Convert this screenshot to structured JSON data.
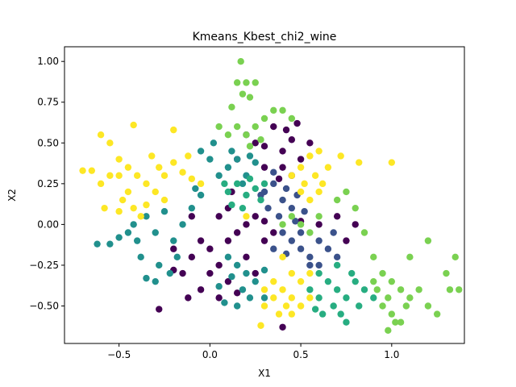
{
  "chart_data": {
    "type": "scatter",
    "title": "Kmeans_Kbest_chi2_wine",
    "xlabel": "X1",
    "ylabel": "X2",
    "xlim": [
      -0.8,
      1.4
    ],
    "ylim": [
      -0.73,
      1.09
    ],
    "xticks": [
      -0.5,
      0.0,
      0.5,
      1.0
    ],
    "xtick_labels": [
      "−0.5",
      "0.0",
      "0.5",
      "1.0"
    ],
    "yticks": [
      -0.5,
      -0.25,
      0.0,
      0.25,
      0.5,
      0.75,
      1.0
    ],
    "ytick_labels": [
      "−0.50",
      "−0.25",
      "0.00",
      "0.25",
      "0.50",
      "0.75",
      "1.00"
    ],
    "grid": false,
    "legend": "none",
    "series": [
      {
        "color": "#440154",
        "points": [
          [
            0.3,
            0.48
          ],
          [
            0.4,
            0.45
          ],
          [
            0.45,
            0.52
          ],
          [
            0.35,
            0.6
          ],
          [
            0.48,
            0.62
          ],
          [
            0.3,
            0.35
          ],
          [
            0.4,
            0.35
          ],
          [
            0.45,
            0.3
          ],
          [
            0.5,
            0.4
          ],
          [
            0.55,
            0.5
          ],
          [
            0.42,
            0.58
          ],
          [
            0.25,
            0.5
          ],
          [
            0.38,
            0.28
          ],
          [
            0.2,
            0.55
          ],
          [
            0.15,
            0.4
          ],
          [
            -0.15,
            -0.3
          ],
          [
            -0.1,
            -0.2
          ],
          [
            0.0,
            -0.15
          ],
          [
            0.1,
            -0.1
          ],
          [
            0.15,
            -0.05
          ],
          [
            0.2,
            0.0
          ],
          [
            0.25,
            0.05
          ],
          [
            0.3,
            0.02
          ],
          [
            0.05,
            -0.25
          ],
          [
            -0.05,
            -0.1
          ],
          [
            0.0,
            -0.3
          ],
          [
            0.1,
            -0.35
          ],
          [
            -0.2,
            -0.28
          ],
          [
            -0.05,
            -0.4
          ],
          [
            0.05,
            -0.45
          ],
          [
            0.2,
            -0.2
          ],
          [
            0.3,
            -0.1
          ],
          [
            0.35,
            -0.05
          ],
          [
            0.5,
            0.02
          ],
          [
            0.6,
            0.0
          ],
          [
            0.7,
            0.05
          ],
          [
            0.8,
            0.0
          ],
          [
            0.75,
            -0.1
          ],
          [
            -0.28,
            -0.52
          ],
          [
            0.4,
            -0.63
          ],
          [
            0.12,
            0.2
          ],
          [
            0.1,
            0.1
          ],
          [
            -0.1,
            0.05
          ],
          [
            -0.2,
            -0.15
          ],
          [
            0.25,
            -0.3
          ],
          [
            -0.12,
            -0.45
          ],
          [
            0.05,
            0.05
          ],
          [
            0.15,
            -0.42
          ]
        ]
      },
      {
        "color": "#3b528b",
        "points": [
          [
            0.3,
            0.2
          ],
          [
            0.35,
            0.25
          ],
          [
            0.4,
            0.15
          ],
          [
            0.45,
            0.1
          ],
          [
            0.38,
            0.05
          ],
          [
            0.32,
            0.1
          ],
          [
            0.28,
            0.18
          ],
          [
            0.42,
            0.22
          ],
          [
            0.35,
            0.32
          ],
          [
            0.48,
            0.18
          ],
          [
            0.4,
            -0.05
          ],
          [
            0.45,
            -0.1
          ],
          [
            0.5,
            -0.15
          ],
          [
            0.55,
            -0.2
          ],
          [
            0.6,
            -0.1
          ],
          [
            0.65,
            -0.15
          ],
          [
            0.5,
            -0.05
          ],
          [
            0.42,
            -0.18
          ],
          [
            0.7,
            -0.2
          ],
          [
            0.55,
            -0.25
          ],
          [
            0.6,
            -0.25
          ],
          [
            0.68,
            -0.05
          ],
          [
            0.35,
            -0.15
          ],
          [
            0.47,
            0.02
          ],
          [
            0.52,
            0.08
          ]
        ]
      },
      {
        "color": "#21908d",
        "points": [
          [
            -0.4,
            -0.1
          ],
          [
            -0.3,
            -0.05
          ],
          [
            -0.2,
            -0.1
          ],
          [
            -0.35,
            0.05
          ],
          [
            -0.25,
            0.08
          ],
          [
            -0.45,
            -0.05
          ],
          [
            -0.5,
            -0.08
          ],
          [
            -0.38,
            -0.2
          ],
          [
            -0.28,
            -0.25
          ],
          [
            -0.18,
            -0.2
          ],
          [
            -0.15,
            0.0
          ],
          [
            -0.22,
            -0.3
          ],
          [
            -0.3,
            -0.35
          ],
          [
            -0.42,
            0.0
          ],
          [
            -0.55,
            -0.12
          ],
          [
            -0.62,
            -0.12
          ],
          [
            -0.1,
            0.1
          ],
          [
            -0.05,
            0.18
          ],
          [
            0.1,
            0.35
          ],
          [
            0.15,
            0.4
          ],
          [
            0.2,
            0.3
          ],
          [
            0.25,
            0.38
          ],
          [
            0.05,
            0.3
          ],
          [
            0.12,
            0.45
          ],
          [
            0.22,
            0.42
          ],
          [
            0.18,
            0.25
          ],
          [
            0.0,
            0.4
          ],
          [
            -0.05,
            0.45
          ],
          [
            0.1,
            -0.2
          ],
          [
            0.15,
            -0.25
          ],
          [
            0.2,
            -0.3
          ],
          [
            0.25,
            -0.35
          ],
          [
            0.18,
            -0.4
          ],
          [
            0.12,
            -0.32
          ],
          [
            0.3,
            -0.28
          ],
          [
            0.22,
            -0.45
          ],
          [
            0.15,
            -0.5
          ],
          [
            0.3,
            -0.45
          ],
          [
            0.05,
            -0.38
          ],
          [
            -0.35,
            -0.33
          ],
          [
            0.08,
            -0.48
          ],
          [
            -0.08,
            0.22
          ],
          [
            0.02,
            0.5
          ]
        ]
      },
      {
        "color": "#27ad81",
        "points": [
          [
            0.1,
            0.2
          ],
          [
            0.15,
            0.25
          ],
          [
            0.2,
            0.18
          ],
          [
            0.25,
            0.22
          ],
          [
            0.12,
            0.12
          ],
          [
            0.18,
            0.1
          ],
          [
            0.22,
            0.28
          ],
          [
            0.08,
            0.25
          ],
          [
            0.28,
            0.15
          ],
          [
            0.3,
            0.25
          ],
          [
            0.6,
            -0.3
          ],
          [
            0.65,
            -0.35
          ],
          [
            0.7,
            -0.4
          ],
          [
            0.75,
            -0.45
          ],
          [
            0.8,
            -0.35
          ],
          [
            0.85,
            -0.4
          ],
          [
            0.68,
            -0.5
          ],
          [
            0.72,
            -0.55
          ],
          [
            0.6,
            -0.45
          ],
          [
            0.78,
            -0.3
          ],
          [
            0.55,
            -0.4
          ],
          [
            0.62,
            -0.55
          ],
          [
            0.82,
            -0.5
          ],
          [
            0.9,
            -0.45
          ],
          [
            0.75,
            -0.6
          ],
          [
            0.7,
            -0.25
          ],
          [
            0.58,
            -0.52
          ]
        ]
      },
      {
        "color": "#7ad151",
        "points": [
          [
            0.17,
            1.0
          ],
          [
            0.15,
            0.87
          ],
          [
            0.2,
            0.87
          ],
          [
            0.25,
            0.87
          ],
          [
            0.18,
            0.8
          ],
          [
            0.22,
            0.78
          ],
          [
            0.12,
            0.72
          ],
          [
            0.15,
            0.6
          ],
          [
            0.2,
            0.55
          ],
          [
            0.25,
            0.6
          ],
          [
            0.3,
            0.65
          ],
          [
            0.35,
            0.7
          ],
          [
            0.1,
            0.55
          ],
          [
            0.05,
            0.6
          ],
          [
            0.22,
            0.48
          ],
          [
            0.28,
            0.52
          ],
          [
            0.4,
            0.7
          ],
          [
            0.45,
            0.65
          ],
          [
            0.4,
            0.0
          ],
          [
            0.45,
            0.05
          ],
          [
            0.5,
            0.0
          ],
          [
            0.55,
            -0.05
          ],
          [
            0.6,
            0.05
          ],
          [
            0.7,
            0.15
          ],
          [
            0.75,
            0.2
          ],
          [
            0.8,
            0.1
          ],
          [
            0.85,
            -0.05
          ],
          [
            0.9,
            -0.2
          ],
          [
            0.95,
            -0.3
          ],
          [
            1.0,
            -0.35
          ],
          [
            1.05,
            -0.4
          ],
          [
            0.9,
            -0.35
          ],
          [
            0.95,
            -0.5
          ],
          [
            1.0,
            -0.55
          ],
          [
            1.05,
            -0.6
          ],
          [
            1.1,
            -0.45
          ],
          [
            1.15,
            -0.4
          ],
          [
            1.2,
            -0.5
          ],
          [
            1.25,
            -0.55
          ],
          [
            1.3,
            -0.3
          ],
          [
            1.35,
            -0.2
          ],
          [
            1.37,
            -0.4
          ],
          [
            1.32,
            -0.4
          ],
          [
            1.2,
            -0.1
          ],
          [
            1.1,
            -0.2
          ],
          [
            0.92,
            -0.4
          ],
          [
            0.98,
            -0.45
          ],
          [
            1.02,
            -0.6
          ],
          [
            1.08,
            -0.5
          ],
          [
            0.98,
            -0.65
          ]
        ]
      },
      {
        "color": "#fde725",
        "points": [
          [
            -0.7,
            0.33
          ],
          [
            -0.65,
            0.33
          ],
          [
            -0.6,
            0.55
          ],
          [
            -0.55,
            0.5
          ],
          [
            -0.5,
            0.4
          ],
          [
            -0.45,
            0.35
          ],
          [
            -0.4,
            0.3
          ],
          [
            -0.35,
            0.25
          ],
          [
            -0.3,
            0.2
          ],
          [
            -0.25,
            0.15
          ],
          [
            -0.5,
            0.3
          ],
          [
            -0.45,
            0.2
          ],
          [
            -0.42,
            0.1
          ],
          [
            -0.38,
            0.05
          ],
          [
            -0.32,
            0.42
          ],
          [
            -0.28,
            0.35
          ],
          [
            -0.2,
            0.38
          ],
          [
            -0.15,
            0.32
          ],
          [
            -0.1,
            0.28
          ],
          [
            -0.05,
            0.25
          ],
          [
            -0.2,
            0.58
          ],
          [
            -0.42,
            0.61
          ],
          [
            -0.55,
            0.3
          ],
          [
            -0.6,
            0.25
          ],
          [
            -0.48,
            0.15
          ],
          [
            -0.35,
            0.12
          ],
          [
            -0.25,
            0.3
          ],
          [
            -0.12,
            0.42
          ],
          [
            -0.58,
            0.1
          ],
          [
            -0.5,
            0.08
          ],
          [
            0.45,
            0.3
          ],
          [
            0.5,
            0.35
          ],
          [
            0.55,
            0.42
          ],
          [
            0.6,
            0.45
          ],
          [
            0.52,
            0.25
          ],
          [
            0.58,
            0.3
          ],
          [
            0.62,
            0.25
          ],
          [
            0.5,
            0.2
          ],
          [
            0.65,
            0.35
          ],
          [
            0.72,
            0.42
          ],
          [
            0.55,
            0.15
          ],
          [
            0.6,
            0.2
          ],
          [
            0.4,
            -0.2
          ],
          [
            0.45,
            -0.3
          ],
          [
            0.5,
            -0.35
          ],
          [
            0.4,
            -0.4
          ],
          [
            0.35,
            -0.45
          ],
          [
            0.3,
            -0.5
          ],
          [
            0.45,
            -0.45
          ],
          [
            0.5,
            -0.5
          ],
          [
            0.55,
            -0.45
          ],
          [
            0.38,
            -0.55
          ],
          [
            0.42,
            -0.5
          ],
          [
            0.3,
            -0.4
          ],
          [
            0.55,
            -0.3
          ],
          [
            0.28,
            -0.62
          ],
          [
            0.45,
            -0.55
          ],
          [
            0.35,
            -0.35
          ],
          [
            0.2,
            0.05
          ],
          [
            1.0,
            0.38
          ],
          [
            0.82,
            0.38
          ]
        ]
      }
    ]
  }
}
